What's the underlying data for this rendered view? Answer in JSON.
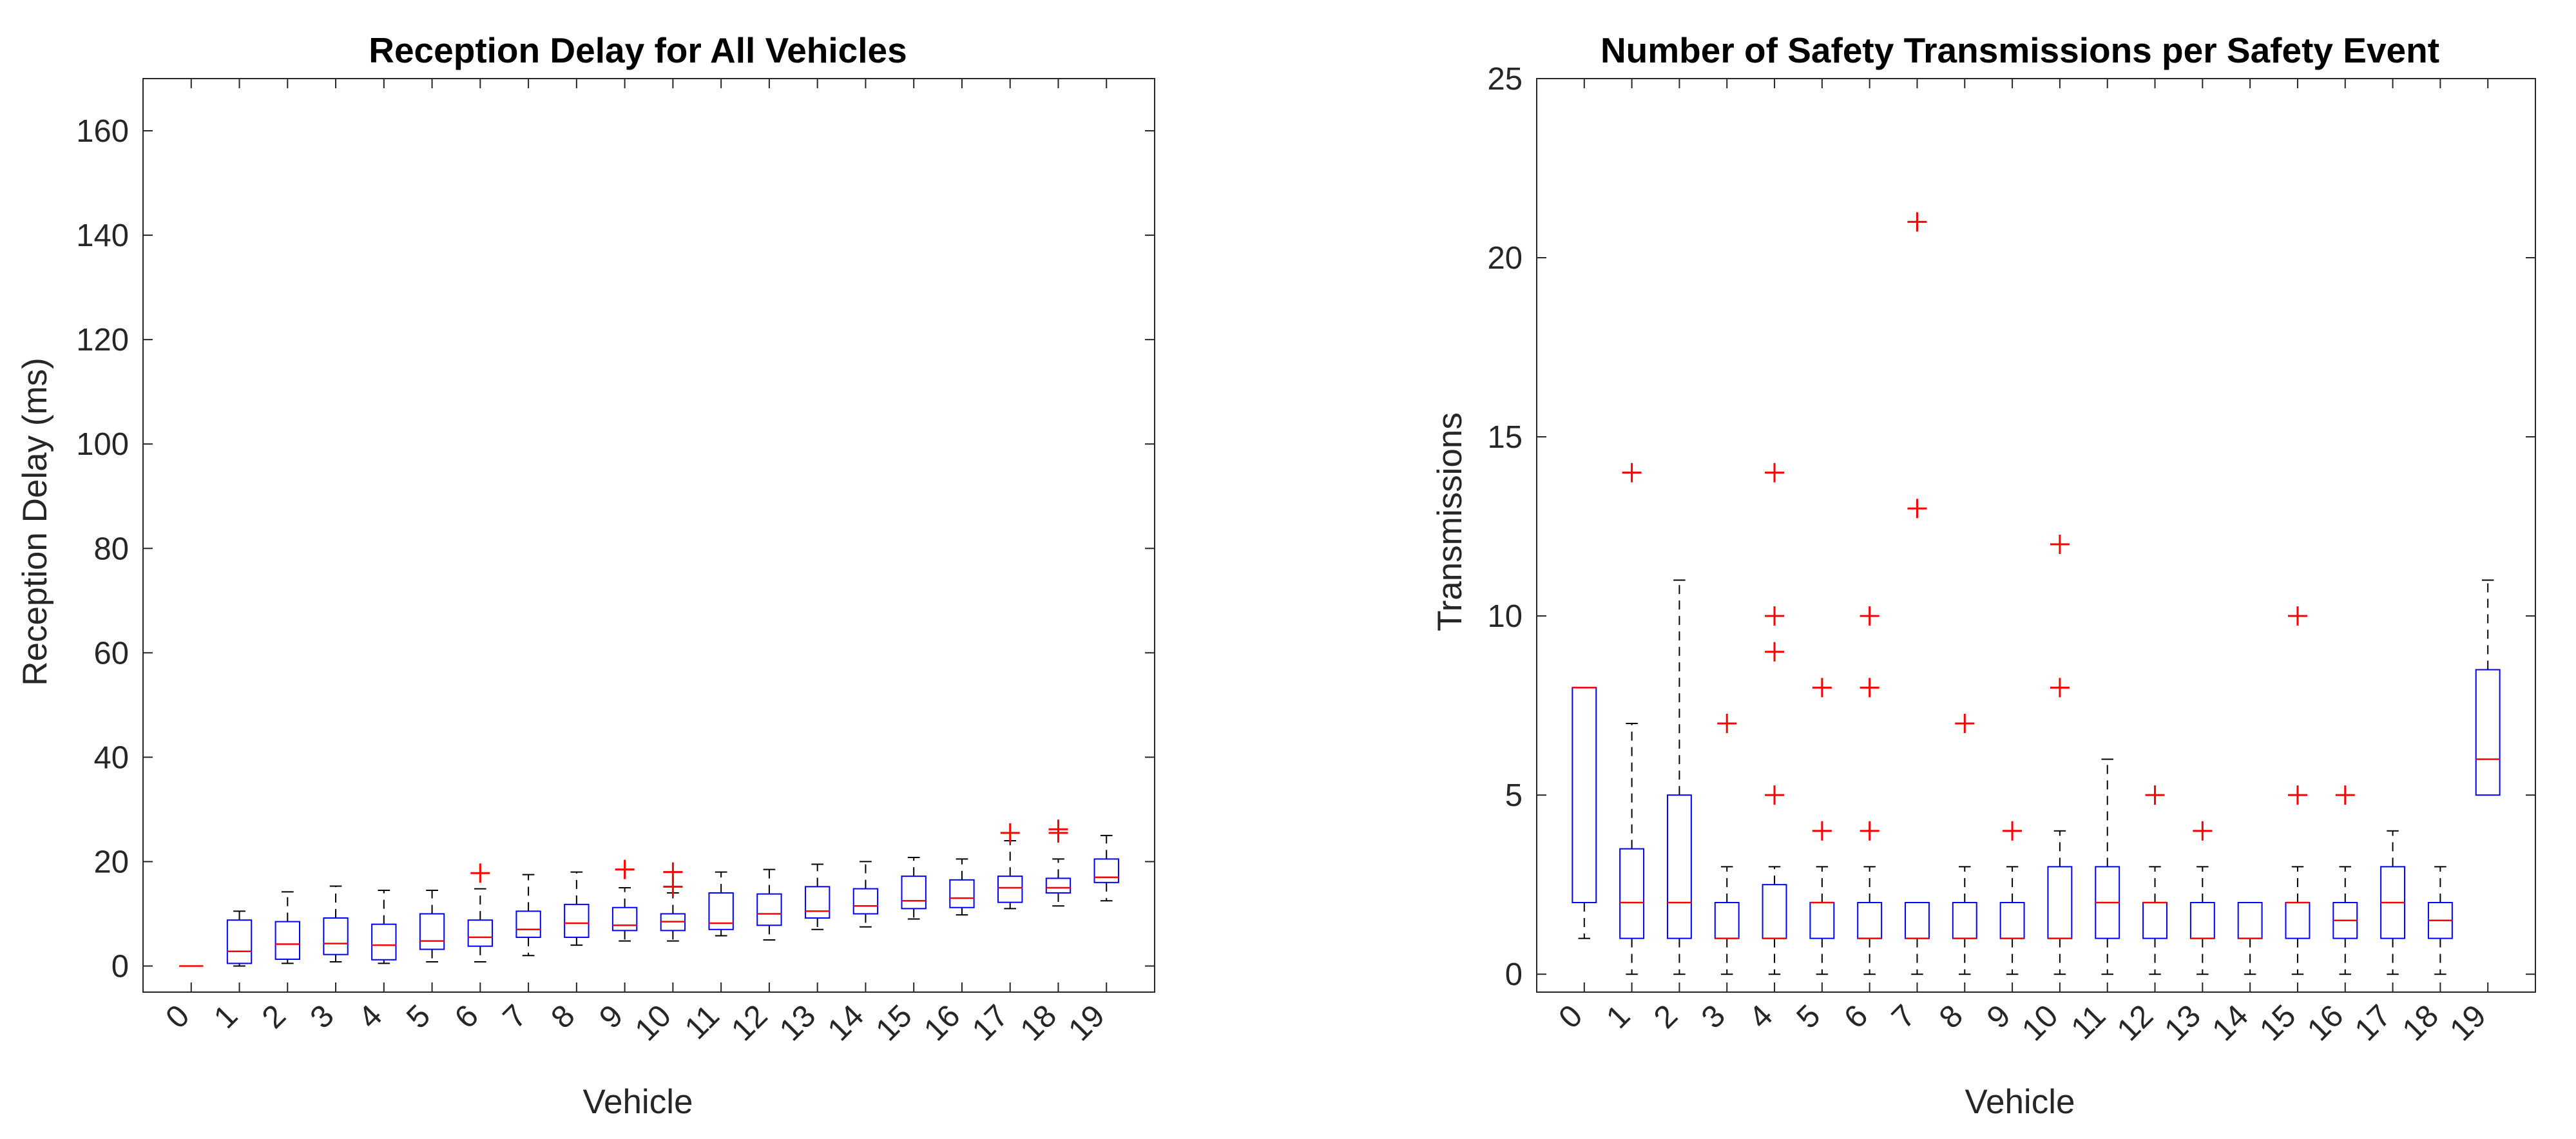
{
  "chart_data": [
    {
      "type": "box",
      "title": "Reception Delay for All Vehicles",
      "xlabel": "Vehicle",
      "ylabel": "Reception Delay (ms)",
      "ylim": [
        -5,
        170
      ],
      "yticks": [
        0,
        20,
        40,
        60,
        80,
        100,
        120,
        140,
        160
      ],
      "categories": [
        "0",
        "1",
        "2",
        "3",
        "4",
        "5",
        "6",
        "7",
        "8",
        "9",
        "10",
        "11",
        "12",
        "13",
        "14",
        "15",
        "16",
        "17",
        "18",
        "19"
      ],
      "boxes": [
        {
          "min": 0,
          "q1": 0,
          "median": 0,
          "q3": 0,
          "max": 0,
          "outliers": []
        },
        {
          "min": 0,
          "q1": 0.5,
          "median": 2.8,
          "q3": 8.8,
          "max": 10.5,
          "outliers": []
        },
        {
          "min": 0.5,
          "q1": 1.3,
          "median": 4.2,
          "q3": 8.5,
          "max": 14.2,
          "outliers": []
        },
        {
          "min": 0.8,
          "q1": 2.2,
          "median": 4.3,
          "q3": 9.2,
          "max": 15.3,
          "outliers": []
        },
        {
          "min": 0.5,
          "q1": 1.2,
          "median": 4.0,
          "q3": 8.0,
          "max": 14.5,
          "outliers": []
        },
        {
          "min": 0.8,
          "q1": 3.2,
          "median": 4.8,
          "q3": 10.0,
          "max": 14.5,
          "outliers": []
        },
        {
          "min": 0.8,
          "q1": 3.8,
          "median": 5.5,
          "q3": 8.8,
          "max": 14.8,
          "outliers": [
            17.8
          ]
        },
        {
          "min": 2.0,
          "q1": 5.5,
          "median": 7.0,
          "q3": 10.5,
          "max": 17.5,
          "outliers": []
        },
        {
          "min": 4.0,
          "q1": 5.5,
          "median": 8.2,
          "q3": 11.8,
          "max": 18.0,
          "outliers": []
        },
        {
          "min": 4.8,
          "q1": 6.8,
          "median": 7.8,
          "q3": 11.2,
          "max": 15.0,
          "outliers": [
            18.5
          ]
        },
        {
          "min": 4.8,
          "q1": 6.8,
          "median": 8.5,
          "q3": 10.0,
          "max": 14.0,
          "outliers": [
            15.2,
            18.0
          ]
        },
        {
          "min": 5.8,
          "q1": 7.0,
          "median": 8.2,
          "q3": 14.0,
          "max": 18.0,
          "outliers": []
        },
        {
          "min": 5.0,
          "q1": 7.8,
          "median": 10.0,
          "q3": 13.8,
          "max": 18.5,
          "outliers": []
        },
        {
          "min": 7.0,
          "q1": 9.2,
          "median": 10.5,
          "q3": 15.2,
          "max": 19.5,
          "outliers": []
        },
        {
          "min": 7.5,
          "q1": 10.0,
          "median": 11.5,
          "q3": 14.8,
          "max": 20.0,
          "outliers": []
        },
        {
          "min": 9.0,
          "q1": 11.0,
          "median": 12.5,
          "q3": 17.2,
          "max": 20.8,
          "outliers": []
        },
        {
          "min": 9.8,
          "q1": 11.2,
          "median": 13.0,
          "q3": 16.5,
          "max": 20.5,
          "outliers": []
        },
        {
          "min": 11.0,
          "q1": 12.2,
          "median": 15.0,
          "q3": 17.2,
          "max": 24.0,
          "outliers": [
            25.5
          ]
        },
        {
          "min": 11.5,
          "q1": 14.0,
          "median": 15.0,
          "q3": 16.8,
          "max": 20.5,
          "outliers": [
            25.5,
            26.2
          ]
        },
        {
          "min": 12.5,
          "q1": 16.0,
          "median": 17.0,
          "q3": 20.5,
          "max": 25.0,
          "outliers": []
        }
      ]
    },
    {
      "type": "box",
      "title": "Number of Safety Transmissions per Safety Event",
      "xlabel": "Vehicle",
      "ylabel": "Transmissions",
      "ylim": [
        -0.5,
        25
      ],
      "yticks": [
        0,
        5,
        10,
        15,
        20,
        25
      ],
      "categories": [
        "0",
        "1",
        "2",
        "3",
        "4",
        "5",
        "6",
        "7",
        "8",
        "9",
        "10",
        "11",
        "12",
        "13",
        "14",
        "15",
        "16",
        "17",
        "18",
        "19"
      ],
      "boxes": [
        {
          "min": 1,
          "q1": 2,
          "median": 8,
          "q3": 8,
          "max": 8,
          "outliers": []
        },
        {
          "min": 0,
          "q1": 1,
          "median": 2,
          "q3": 3.5,
          "max": 7,
          "outliers": [
            14
          ]
        },
        {
          "min": 0,
          "q1": 1,
          "median": 2,
          "q3": 5,
          "max": 11,
          "outliers": []
        },
        {
          "min": 0,
          "q1": 1,
          "median": 1,
          "q3": 2,
          "max": 3,
          "outliers": [
            7
          ]
        },
        {
          "min": 0,
          "q1": 1,
          "median": 1,
          "q3": 2.5,
          "max": 3,
          "outliers": [
            5,
            9,
            10,
            14
          ]
        },
        {
          "min": 0,
          "q1": 1,
          "median": 2,
          "q3": 2,
          "max": 3,
          "outliers": [
            4,
            8
          ]
        },
        {
          "min": 0,
          "q1": 1,
          "median": 1,
          "q3": 2,
          "max": 3,
          "outliers": [
            4,
            8,
            10
          ]
        },
        {
          "min": 0,
          "q1": 1,
          "median": 1,
          "q3": 2,
          "max": 2,
          "outliers": [
            13,
            21
          ]
        },
        {
          "min": 0,
          "q1": 1,
          "median": 1,
          "q3": 2,
          "max": 3,
          "outliers": [
            7
          ]
        },
        {
          "min": 0,
          "q1": 1,
          "median": 1,
          "q3": 2,
          "max": 3,
          "outliers": [
            4
          ]
        },
        {
          "min": 0,
          "q1": 1,
          "median": 1,
          "q3": 3,
          "max": 4,
          "outliers": [
            8,
            12
          ]
        },
        {
          "min": 0,
          "q1": 1,
          "median": 2,
          "q3": 3,
          "max": 6,
          "outliers": []
        },
        {
          "min": 0,
          "q1": 1,
          "median": 2,
          "q3": 2,
          "max": 3,
          "outliers": [
            5
          ]
        },
        {
          "min": 0,
          "q1": 1,
          "median": 1,
          "q3": 2,
          "max": 3,
          "outliers": [
            4
          ]
        },
        {
          "min": 0,
          "q1": 1,
          "median": 1,
          "q3": 2,
          "max": 2,
          "outliers": []
        },
        {
          "min": 0,
          "q1": 1,
          "median": 2,
          "q3": 2,
          "max": 3,
          "outliers": [
            5,
            10
          ]
        },
        {
          "min": 0,
          "q1": 1,
          "median": 1.5,
          "q3": 2,
          "max": 3,
          "outliers": [
            5
          ]
        },
        {
          "min": 0,
          "q1": 1,
          "median": 2,
          "q3": 3,
          "max": 4,
          "outliers": []
        },
        {
          "min": 0,
          "q1": 1,
          "median": 1.5,
          "q3": 2,
          "max": 3,
          "outliers": []
        },
        {
          "min": 5,
          "q1": 5,
          "median": 6,
          "q3": 8.5,
          "max": 11,
          "outliers": []
        }
      ]
    }
  ],
  "colors": {
    "box": "#0000ff",
    "median": "#ff0000",
    "whisker": "#000000",
    "outlier": "#ff0000",
    "axis": "#262626"
  }
}
